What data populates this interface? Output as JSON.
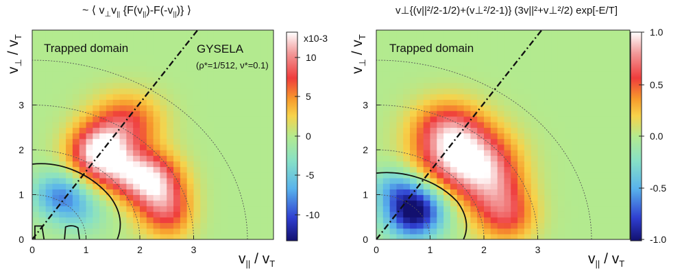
{
  "chart_data": [
    {
      "type": "heatmap",
      "title": "~ ⟨ v⊥v|| {F(v||)-F(-v||)} ⟩",
      "xlabel": "v|| / vT",
      "ylabel": "v⊥ / vT",
      "xlim": [
        0,
        3.9
      ],
      "ylim": [
        0,
        3.95
      ],
      "x_ticks": [
        "0",
        "1",
        "2",
        "3"
      ],
      "y_ticks": [
        "0",
        "1",
        "2",
        "3"
      ],
      "annotations": [
        "Trapped domain",
        "GYSELA",
        "(ρ*=1/512, ν*=0.1)"
      ],
      "colorbar": {
        "label": "x10-3",
        "ticks": [
          "10",
          "5",
          "0",
          "-5",
          "-10"
        ],
        "range": [
          -13,
          13
        ]
      },
      "features": {
        "max": {
          "x": 1.3,
          "y": 1.9,
          "value": 13
        },
        "min": {
          "x": 0.55,
          "y": 0.9,
          "value": -6
        },
        "quarter_circles_radius": [
          1,
          2,
          3,
          4
        ],
        "trapped_boundary_slope": 1.52
      }
    },
    {
      "type": "heatmap",
      "title": "v⊥{(v||²/2-1/2)+(v⊥²/2-1)} (3v||²+v⊥²/2) exp[-E/T]",
      "xlabel": "v|| / vT",
      "ylabel": "v⊥ / vT",
      "xlim": [
        0,
        3.9
      ],
      "ylim": [
        0,
        3.95
      ],
      "x_ticks": [
        "0",
        "1",
        "2",
        "3"
      ],
      "y_ticks": [
        "0",
        "1",
        "2",
        "3"
      ],
      "annotations": [
        "Trapped domain"
      ],
      "colorbar": {
        "ticks": [
          "1.0",
          "0.5",
          "0.0",
          "-0.5",
          "-1.0"
        ],
        "range": [
          -1,
          1
        ]
      },
      "features": {
        "max": {
          "x": 1.55,
          "y": 1.8,
          "value": 0.92
        },
        "min": {
          "x": 0.65,
          "y": 0.65,
          "value": -1.0
        },
        "quarter_circles_radius": [
          1,
          2,
          3,
          4
        ],
        "trapped_boundary_slope": 1.52
      }
    }
  ],
  "panels": [
    {
      "title_main": "~ ⟨ v",
      "title_sub1": "⊥",
      "title_mid": "v",
      "title_sub2": "||",
      "title_rest": " {F(v",
      "title_sub3": "||",
      "title_rest2": ")-F(-v",
      "title_sub4": "||",
      "title_end": ")} ⟩",
      "trapped": "Trapped domain",
      "code": "GYSELA",
      "params": "(ρ*=1/512, ν*=0.1)",
      "cb_exp": "x10-3",
      "cb_ticks": [
        "10",
        "5",
        "0",
        "-5",
        "-10"
      ]
    },
    {
      "title": "v⊥{(v||²/2-1/2)+(v⊥²/2-1)} (3v||²+v⊥²/2) exp[-E/T]",
      "trapped": "Trapped domain",
      "cb_ticks": [
        "1.0",
        "0.5",
        "0.0",
        "-0.5",
        "-1.0"
      ]
    }
  ],
  "axes": {
    "xlabel_main": "v",
    "xlabel_sub": "||",
    "xlabel_den": " / v",
    "xlabel_den_sub": "T",
    "ylabel_main": "v",
    "ylabel_sub": "⊥",
    "ylabel_den": " / v",
    "ylabel_den_sub": "T",
    "ticks": [
      "0",
      "1",
      "2",
      "3"
    ]
  },
  "colors": {
    "background": "#b3ea8f",
    "colormap": [
      "#12106f",
      "#2f3fd0",
      "#59b3ec",
      "#86e0c7",
      "#b3ea8f",
      "#f7d24a",
      "#f79a2c",
      "#ef3c3c",
      "#f29a9a",
      "#ffffff"
    ]
  }
}
